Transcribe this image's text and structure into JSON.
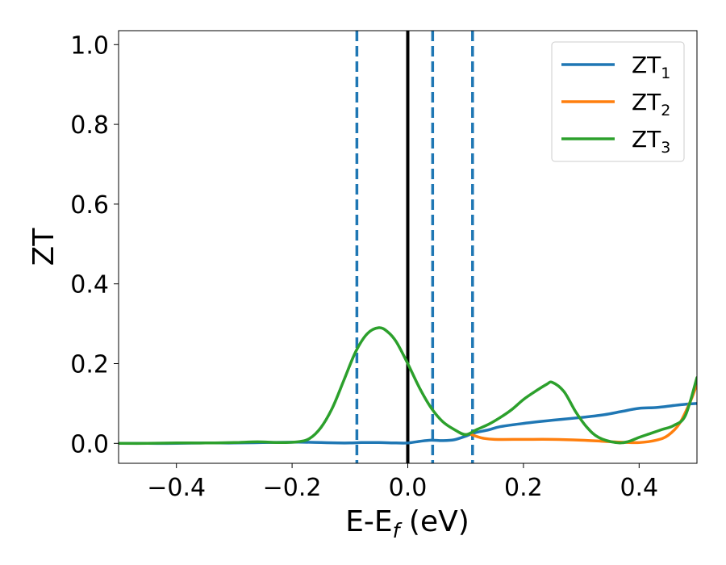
{
  "chart_data": {
    "type": "line",
    "title": "",
    "xlabel": {
      "main": "E-E",
      "sub": "f",
      "unit": " (eV)"
    },
    "ylabel": "ZT",
    "xlim": [
      -0.5,
      0.5
    ],
    "ylim": [
      -0.05,
      1.035
    ],
    "xticks": [
      -0.4,
      -0.2,
      0.0,
      0.2,
      0.4
    ],
    "xtick_labels": [
      "−0.4",
      "−0.2",
      "0.0",
      "0.2",
      "0.4"
    ],
    "yticks": [
      0.0,
      0.2,
      0.4,
      0.6,
      0.8,
      1.0
    ],
    "ytick_labels": [
      "0.0",
      "0.2",
      "0.4",
      "0.6",
      "0.8",
      "1.0"
    ],
    "grid": false,
    "legend_position": "top-right",
    "vertical_lines": [
      {
        "x": -0.088,
        "style": "dashed",
        "color": "#1f77b4"
      },
      {
        "x": 0.0,
        "style": "solid",
        "color": "#000000"
      },
      {
        "x": 0.043,
        "style": "dashed",
        "color": "#1f77b4"
      },
      {
        "x": 0.112,
        "style": "dashed",
        "color": "#1f77b4"
      }
    ],
    "series": [
      {
        "name": "ZT",
        "name_sub": "1",
        "color": "#1f77b4",
        "x": [
          -0.5,
          -0.45,
          -0.4,
          -0.35,
          -0.3,
          -0.25,
          -0.2,
          -0.18,
          -0.15,
          -0.12,
          -0.1,
          -0.08,
          -0.05,
          -0.02,
          0.0,
          0.02,
          0.04,
          0.06,
          0.08,
          0.1,
          0.11,
          0.12,
          0.14,
          0.16,
          0.2,
          0.25,
          0.3,
          0.34,
          0.37,
          0.4,
          0.43,
          0.46,
          0.48,
          0.5
        ],
        "y": [
          0.0,
          0.0,
          0.0,
          0.001,
          0.001,
          0.002,
          0.003,
          0.003,
          0.002,
          0.001,
          0.001,
          0.002,
          0.002,
          0.001,
          0.001,
          0.005,
          0.008,
          0.007,
          0.009,
          0.018,
          0.024,
          0.028,
          0.034,
          0.042,
          0.05,
          0.058,
          0.065,
          0.072,
          0.08,
          0.088,
          0.09,
          0.095,
          0.098,
          0.1
        ]
      },
      {
        "name": "ZT",
        "name_sub": "2",
        "color": "#ff7f0e",
        "x": [
          0.11,
          0.12,
          0.13,
          0.15,
          0.2,
          0.25,
          0.3,
          0.34,
          0.37,
          0.4,
          0.43,
          0.45,
          0.47,
          0.49,
          0.5
        ],
        "y": [
          0.022,
          0.017,
          0.013,
          0.01,
          0.01,
          0.01,
          0.008,
          0.005,
          0.003,
          0.002,
          0.008,
          0.02,
          0.05,
          0.11,
          0.15
        ]
      },
      {
        "name": "ZT",
        "name_sub": "3",
        "color": "#2ca02c",
        "x": [
          -0.5,
          -0.45,
          -0.4,
          -0.35,
          -0.3,
          -0.26,
          -0.22,
          -0.19,
          -0.17,
          -0.15,
          -0.13,
          -0.11,
          -0.09,
          -0.07,
          -0.05,
          -0.035,
          -0.02,
          0.0,
          0.02,
          0.04,
          0.06,
          0.08,
          0.1,
          0.12,
          0.14,
          0.16,
          0.18,
          0.2,
          0.22,
          0.24,
          0.25,
          0.27,
          0.29,
          0.31,
          0.33,
          0.36,
          0.38,
          0.4,
          0.42,
          0.44,
          0.46,
          0.48,
          0.5
        ],
        "y": [
          0.0,
          0.0,
          0.001,
          0.001,
          0.002,
          0.004,
          0.002,
          0.004,
          0.012,
          0.04,
          0.09,
          0.16,
          0.23,
          0.275,
          0.29,
          0.28,
          0.255,
          0.2,
          0.14,
          0.09,
          0.055,
          0.035,
          0.022,
          0.035,
          0.048,
          0.065,
          0.085,
          0.11,
          0.13,
          0.148,
          0.153,
          0.13,
          0.08,
          0.04,
          0.015,
          0.002,
          0.004,
          0.015,
          0.025,
          0.035,
          0.045,
          0.07,
          0.165
        ]
      }
    ]
  }
}
